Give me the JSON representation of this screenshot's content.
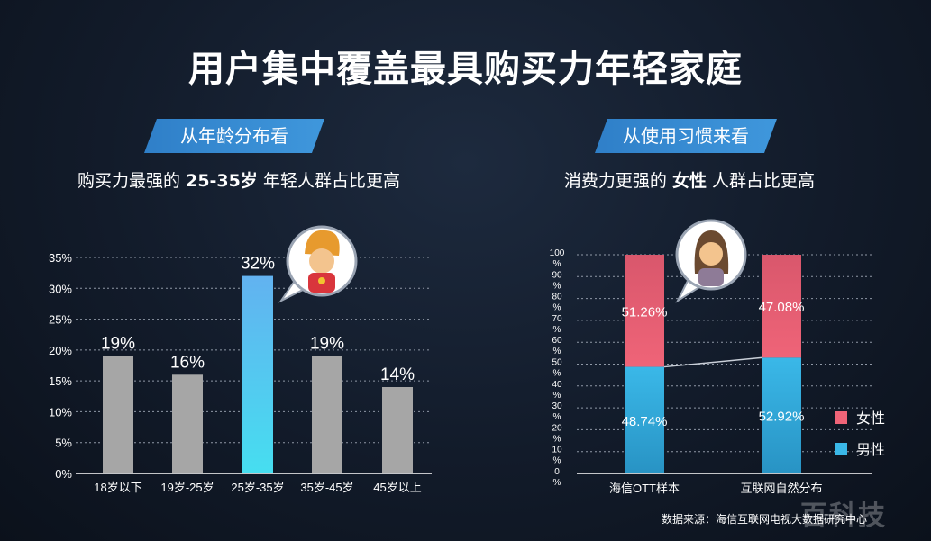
{
  "title": "用户集中覆盖最具购买力年轻家庭",
  "left_panel": {
    "banner": "从年龄分布看",
    "subtitle_pre": "购买力最强的",
    "subtitle_bold": "25-35岁",
    "subtitle_post": "年轻人群占比更高"
  },
  "right_panel": {
    "banner": "从使用习惯来看",
    "subtitle_pre": "消费力更强的",
    "subtitle_bold": "女性",
    "subtitle_post": "人群占比更高"
  },
  "source": "数据来源：海信互联网电视大数据研究中心",
  "watermark": "百科技",
  "colors": {
    "gray_bar": "#a6a6a6",
    "highlight_top": "#62b2f0",
    "highlight_bottom": "#46def0",
    "female_top": "#d9576c",
    "female_bottom": "#ef6478",
    "male_top": "#3ab8e8",
    "male_bottom": "#2893c4",
    "banner": "#3a8fd6"
  },
  "chart_data": [
    {
      "type": "bar",
      "categories": [
        "18岁以下",
        "19岁-25岁",
        "25岁-35岁",
        "35岁-45岁",
        "45岁以上"
      ],
      "values": [
        19,
        16,
        32,
        19,
        14
      ],
      "data_labels": [
        "19%",
        "16%",
        "32%",
        "19%",
        "14%"
      ],
      "highlight_index": 2,
      "ylim": [
        0,
        35
      ],
      "yticks": [
        "0%",
        "5%",
        "10%",
        "15%",
        "20%",
        "25%",
        "30%",
        "35%"
      ],
      "grid": true
    },
    {
      "type": "bar",
      "stacked": true,
      "categories": [
        "海信OTT样本",
        "互联网自然分布"
      ],
      "series": [
        {
          "name": "男性",
          "values": [
            48.74,
            52.92
          ],
          "labels": [
            "48.74%",
            "52.92%"
          ]
        },
        {
          "name": "女性",
          "values": [
            51.26,
            47.08
          ],
          "labels": [
            "51.26%",
            "47.08%"
          ]
        }
      ],
      "ylim": [
        0,
        100
      ],
      "yticks": [
        "0\n%",
        "10\n%",
        "20\n%",
        "30\n%",
        "40\n%",
        "50\n%",
        "60\n%",
        "70\n%",
        "80\n%",
        "90\n%",
        "100\n%"
      ],
      "legend_position": "right",
      "grid": true
    }
  ]
}
